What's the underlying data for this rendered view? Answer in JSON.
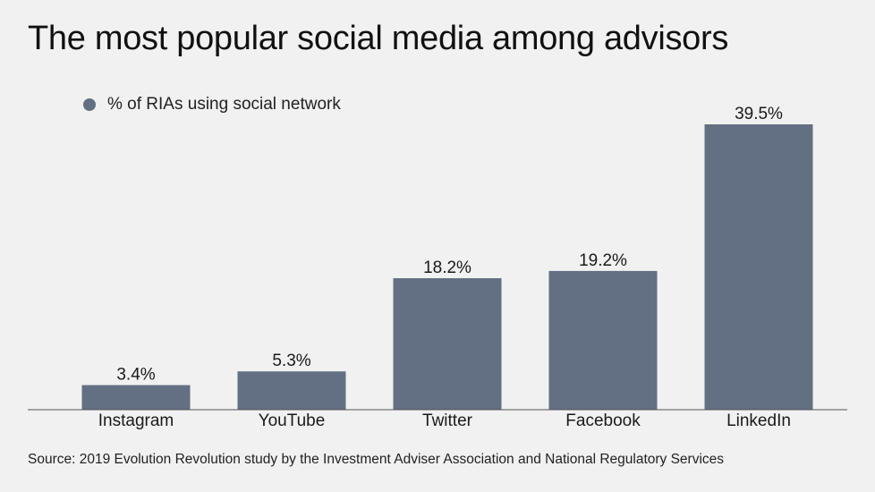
{
  "chart_data": {
    "type": "bar",
    "title": "The most popular social media among advisors",
    "categories": [
      "Instagram",
      "YouTube",
      "Twitter",
      "Facebook",
      "LinkedIn"
    ],
    "series": [
      {
        "name": "% of RIAs using social network",
        "values": [
          3.4,
          5.3,
          18.2,
          19.2,
          39.5
        ],
        "value_labels": [
          "3.4%",
          "5.3%",
          "18.2%",
          "19.2%",
          "39.5%"
        ],
        "color": "#637083"
      }
    ],
    "ylim": [
      0,
      40
    ],
    "xlabel": "",
    "ylabel": "",
    "grid": false,
    "legend_position": "top-left"
  },
  "source": "Source: 2019 Evolution Revolution study by the Investment Adviser Association and National Regulatory Services",
  "colors": {
    "background": "#f0f1f0",
    "bar": "#637083",
    "baseline": "#555555"
  }
}
